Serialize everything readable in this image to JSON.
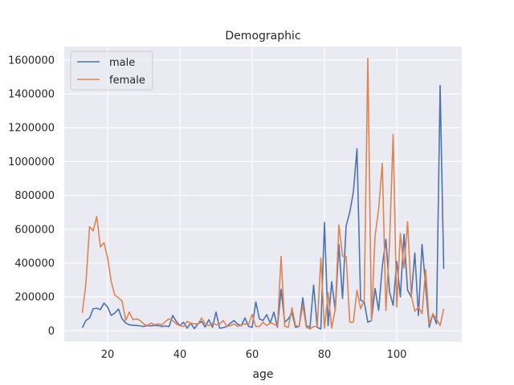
{
  "chart_data": {
    "type": "line",
    "title": "Demographic",
    "xlabel": "age",
    "ylabel": "",
    "xlim": [
      8,
      118
    ],
    "ylim": [
      -65000,
      1680000
    ],
    "xticks": [
      20,
      40,
      60,
      80,
      100
    ],
    "yticks": [
      0,
      200000,
      400000,
      600000,
      800000,
      1000000,
      1200000,
      1400000,
      1600000
    ],
    "xtick_labels": [
      "20",
      "40",
      "60",
      "80",
      "100"
    ],
    "ytick_labels": [
      "0",
      "200000",
      "400000",
      "600000",
      "800000",
      "1000000",
      "1200000",
      "1400000",
      "1600000"
    ],
    "grid": true,
    "legend_position": "top-left",
    "series": [
      {
        "name": "male",
        "color": "#4c72b0",
        "points": [
          [
            13,
            18000
          ],
          [
            14,
            60000
          ],
          [
            15,
            75000
          ],
          [
            16,
            130000
          ],
          [
            17,
            133000
          ],
          [
            18,
            125000
          ],
          [
            19,
            163000
          ],
          [
            20,
            140000
          ],
          [
            21,
            90000
          ],
          [
            22,
            105000
          ],
          [
            23,
            128000
          ],
          [
            24,
            70000
          ],
          [
            25,
            45000
          ],
          [
            26,
            35000
          ],
          [
            27,
            32000
          ],
          [
            28,
            32000
          ],
          [
            29,
            28000
          ],
          [
            30,
            25000
          ],
          [
            31,
            30000
          ],
          [
            32,
            28000
          ],
          [
            33,
            32000
          ],
          [
            34,
            30000
          ],
          [
            35,
            25000
          ],
          [
            36,
            28000
          ],
          [
            37,
            24000
          ],
          [
            38,
            90000
          ],
          [
            39,
            55000
          ],
          [
            40,
            30000
          ],
          [
            41,
            50000
          ],
          [
            42,
            15000
          ],
          [
            43,
            45000
          ],
          [
            44,
            12000
          ],
          [
            45,
            40000
          ],
          [
            46,
            55000
          ],
          [
            47,
            22000
          ],
          [
            48,
            65000
          ],
          [
            49,
            20000
          ],
          [
            50,
            110000
          ],
          [
            51,
            15000
          ],
          [
            52,
            18000
          ],
          [
            53,
            25000
          ],
          [
            54,
            45000
          ],
          [
            55,
            60000
          ],
          [
            56,
            38000
          ],
          [
            57,
            30000
          ],
          [
            58,
            75000
          ],
          [
            59,
            25000
          ],
          [
            60,
            20000
          ],
          [
            61,
            170000
          ],
          [
            62,
            70000
          ],
          [
            63,
            60000
          ],
          [
            64,
            95000
          ],
          [
            65,
            45000
          ],
          [
            66,
            110000
          ],
          [
            67,
            20000
          ],
          [
            68,
            245000
          ],
          [
            69,
            50000
          ],
          [
            70,
            70000
          ],
          [
            71,
            105000
          ],
          [
            72,
            20000
          ],
          [
            73,
            25000
          ],
          [
            74,
            195000
          ],
          [
            75,
            30000
          ],
          [
            76,
            20000
          ],
          [
            77,
            270000
          ],
          [
            78,
            20000
          ],
          [
            79,
            10000
          ],
          [
            80,
            640000
          ],
          [
            81,
            30000
          ],
          [
            82,
            290000
          ],
          [
            83,
            120000
          ],
          [
            84,
            510000
          ],
          [
            85,
            190000
          ],
          [
            86,
            620000
          ],
          [
            87,
            700000
          ],
          [
            88,
            820000
          ],
          [
            89,
            1075000
          ],
          [
            90,
            180000
          ],
          [
            91,
            170000
          ],
          [
            92,
            50000
          ],
          [
            93,
            60000
          ],
          [
            94,
            250000
          ],
          [
            95,
            120000
          ],
          [
            96,
            380000
          ],
          [
            97,
            540000
          ],
          [
            98,
            230000
          ],
          [
            99,
            150000
          ],
          [
            100,
            410000
          ],
          [
            101,
            200000
          ],
          [
            102,
            570000
          ],
          [
            103,
            240000
          ],
          [
            104,
            200000
          ],
          [
            105,
            460000
          ],
          [
            106,
            90000
          ],
          [
            107,
            510000
          ],
          [
            108,
            260000
          ],
          [
            109,
            20000
          ],
          [
            110,
            100000
          ],
          [
            111,
            40000
          ],
          [
            112,
            1450000
          ],
          [
            113,
            365000
          ]
        ]
      },
      {
        "name": "female",
        "color": "#dd8452",
        "points": [
          [
            13,
            105000
          ],
          [
            14,
            280000
          ],
          [
            15,
            615000
          ],
          [
            16,
            590000
          ],
          [
            17,
            675000
          ],
          [
            18,
            495000
          ],
          [
            19,
            520000
          ],
          [
            20,
            430000
          ],
          [
            21,
            290000
          ],
          [
            22,
            210000
          ],
          [
            23,
            195000
          ],
          [
            24,
            175000
          ],
          [
            25,
            60000
          ],
          [
            26,
            110000
          ],
          [
            27,
            65000
          ],
          [
            28,
            70000
          ],
          [
            29,
            60000
          ],
          [
            30,
            40000
          ],
          [
            31,
            30000
          ],
          [
            32,
            45000
          ],
          [
            33,
            35000
          ],
          [
            34,
            40000
          ],
          [
            35,
            35000
          ],
          [
            36,
            55000
          ],
          [
            37,
            70000
          ],
          [
            38,
            60000
          ],
          [
            39,
            40000
          ],
          [
            40,
            30000
          ],
          [
            41,
            25000
          ],
          [
            42,
            55000
          ],
          [
            43,
            45000
          ],
          [
            44,
            40000
          ],
          [
            45,
            40000
          ],
          [
            46,
            75000
          ],
          [
            47,
            40000
          ],
          [
            48,
            30000
          ],
          [
            49,
            45000
          ],
          [
            50,
            35000
          ],
          [
            51,
            40000
          ],
          [
            52,
            60000
          ],
          [
            53,
            25000
          ],
          [
            54,
            30000
          ],
          [
            55,
            40000
          ],
          [
            56,
            25000
          ],
          [
            57,
            35000
          ],
          [
            58,
            40000
          ],
          [
            59,
            35000
          ],
          [
            60,
            95000
          ],
          [
            61,
            25000
          ],
          [
            62,
            25000
          ],
          [
            63,
            50000
          ],
          [
            64,
            30000
          ],
          [
            65,
            45000
          ],
          [
            66,
            40000
          ],
          [
            67,
            25000
          ],
          [
            68,
            440000
          ],
          [
            69,
            25000
          ],
          [
            70,
            20000
          ],
          [
            71,
            135000
          ],
          [
            72,
            30000
          ],
          [
            73,
            25000
          ],
          [
            74,
            150000
          ],
          [
            75,
            20000
          ],
          [
            76,
            10000
          ],
          [
            77,
            25000
          ],
          [
            78,
            25000
          ],
          [
            79,
            430000
          ],
          [
            80,
            15000
          ],
          [
            81,
            225000
          ],
          [
            82,
            15000
          ],
          [
            83,
            130000
          ],
          [
            84,
            625000
          ],
          [
            85,
            440000
          ],
          [
            86,
            440000
          ],
          [
            87,
            50000
          ],
          [
            88,
            50000
          ],
          [
            89,
            240000
          ],
          [
            90,
            130000
          ],
          [
            91,
            180000
          ],
          [
            92,
            1610000
          ],
          [
            93,
            60000
          ],
          [
            94,
            560000
          ],
          [
            95,
            720000
          ],
          [
            96,
            990000
          ],
          [
            97,
            120000
          ],
          [
            98,
            510000
          ],
          [
            99,
            1160000
          ],
          [
            100,
            140000
          ],
          [
            101,
            575000
          ],
          [
            102,
            370000
          ],
          [
            103,
            645000
          ],
          [
            104,
            210000
          ],
          [
            105,
            115000
          ],
          [
            106,
            140000
          ],
          [
            107,
            100000
          ],
          [
            108,
            360000
          ],
          [
            109,
            40000
          ],
          [
            110,
            100000
          ],
          [
            111,
            70000
          ],
          [
            112,
            30000
          ],
          [
            113,
            130000
          ]
        ]
      }
    ]
  }
}
